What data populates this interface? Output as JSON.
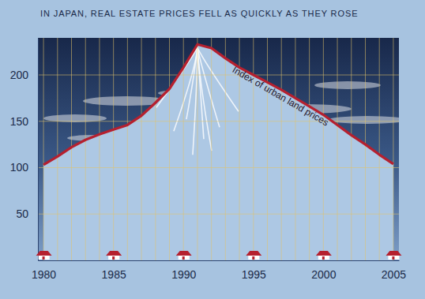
{
  "chart_data": {
    "type": "line",
    "title": "IN JAPAN, REAL ESTATE PRICES FELL AS QUICKLY AS THEY ROSE",
    "x": [
      1980,
      1981,
      1982,
      1983,
      1984,
      1985,
      1986,
      1987,
      1988,
      1989,
      1990,
      1991,
      1992,
      1993,
      1994,
      1995,
      1996,
      1997,
      1998,
      1999,
      2000,
      2001,
      2002,
      2003,
      2004,
      2005
    ],
    "series": [
      {
        "name": "Index of urban land prices",
        "color": "#b5202f",
        "values": [
          103,
          112,
          122,
          130,
          136,
          141,
          146,
          156,
          170,
          185,
          208,
          233,
          229,
          218,
          208,
          200,
          192,
          184,
          175,
          166,
          157,
          146,
          135,
          125,
          114,
          104
        ]
      }
    ],
    "xlim": [
      1979.6,
      2005.4
    ],
    "ylim": [
      0,
      240
    ],
    "xticks": [
      1980,
      1985,
      1990,
      1995,
      2000,
      2005
    ],
    "yticks": [
      50,
      100,
      150,
      200
    ],
    "grid": true
  }
}
